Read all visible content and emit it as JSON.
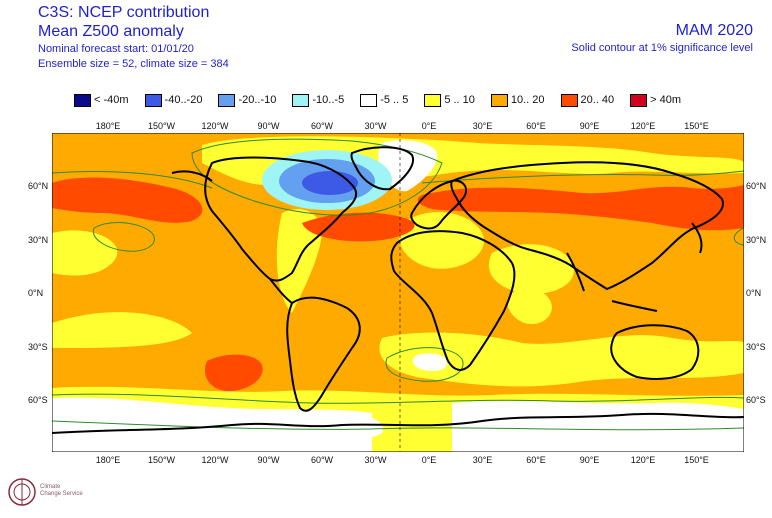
{
  "header": {
    "line1": "C3S: NCEP contribution",
    "line2": "Mean Z500 anomaly",
    "line3": "Nominal forecast start: 01/01/20",
    "line4": "Ensemble size = 52, climate size = 384",
    "season": "MAM 2020",
    "significance_note": "Solid contour at 1% significance level"
  },
  "legend": [
    {
      "label": "< -40m",
      "color": "#0a0a8c"
    },
    {
      "label": "-40..-20",
      "color": "#3c5ae6"
    },
    {
      "label": "-20..-10",
      "color": "#64a0f0"
    },
    {
      "label": "-10..-5",
      "color": "#9ff5f5"
    },
    {
      "label": "-5 .. 5",
      "color": "#ffffff"
    },
    {
      "label": "5 .. 10",
      "color": "#ffff32"
    },
    {
      "label": "10.. 20",
      "color": "#ffaa00"
    },
    {
      "label": "20.. 40",
      "color": "#ff4a00"
    },
    {
      "label": "> 40m",
      "color": "#d2001e"
    }
  ],
  "axes": {
    "lon_labels_top": [
      "180°E",
      "150°W",
      "120°W",
      "90°W",
      "60°W",
      "30°W",
      "0°E",
      "30°E",
      "60°E",
      "90°E",
      "120°E",
      "150°E"
    ],
    "lon_labels_bottom": [
      "180°E",
      "150°W",
      "120°W",
      "90°W",
      "60°W",
      "30°W",
      "0°E",
      "30°E",
      "60°E",
      "90°E",
      "120°E",
      "150°E"
    ],
    "lat_labels_left": [
      "60°N",
      "30°N",
      "0°N",
      "30°S",
      "60°S"
    ],
    "lat_labels_right": [
      "60°N",
      "30°N",
      "0°N",
      "30°S",
      "60°S"
    ]
  },
  "logo": {
    "text_line1": "Climate",
    "text_line2": "Change Service"
  }
}
